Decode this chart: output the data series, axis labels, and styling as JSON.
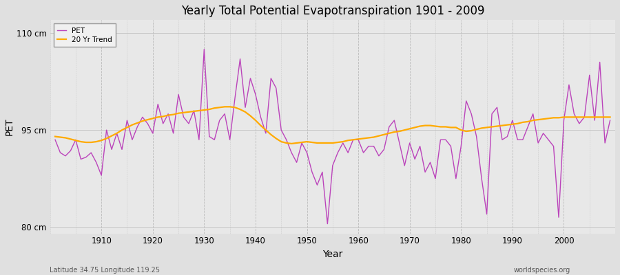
{
  "title": "Yearly Total Potential Evapotranspiration 1901 - 2009",
  "xlabel": "Year",
  "ylabel": "PET",
  "subtitle_left": "Latitude 34.75 Longitude 119.25",
  "subtitle_right": "worldspecies.org",
  "pet_color": "#bb44bb",
  "trend_color": "#ffaa00",
  "bg_color": "#e0e0e0",
  "plot_bg_color": "#e8e8e8",
  "ylim": [
    79,
    112
  ],
  "yticks": [
    80,
    95,
    110
  ],
  "ytick_labels": [
    "80 cm",
    "95 cm",
    "110 cm"
  ],
  "xlim": [
    1900,
    2010
  ],
  "xticks": [
    1910,
    1920,
    1930,
    1940,
    1950,
    1960,
    1970,
    1980,
    1990,
    2000
  ],
  "years": [
    1901,
    1902,
    1903,
    1904,
    1905,
    1906,
    1907,
    1908,
    1909,
    1910,
    1911,
    1912,
    1913,
    1914,
    1915,
    1916,
    1917,
    1918,
    1919,
    1920,
    1921,
    1922,
    1923,
    1924,
    1925,
    1926,
    1927,
    1928,
    1929,
    1930,
    1931,
    1932,
    1933,
    1934,
    1935,
    1936,
    1937,
    1938,
    1939,
    1940,
    1941,
    1942,
    1943,
    1944,
    1945,
    1946,
    1947,
    1948,
    1949,
    1950,
    1951,
    1952,
    1953,
    1954,
    1955,
    1956,
    1957,
    1958,
    1959,
    1960,
    1961,
    1962,
    1963,
    1964,
    1965,
    1966,
    1967,
    1968,
    1969,
    1970,
    1971,
    1972,
    1973,
    1974,
    1975,
    1976,
    1977,
    1978,
    1979,
    1980,
    1981,
    1982,
    1983,
    1984,
    1985,
    1986,
    1987,
    1988,
    1989,
    1990,
    1991,
    1992,
    1993,
    1994,
    1995,
    1996,
    1997,
    1998,
    1999,
    2000,
    2001,
    2002,
    2003,
    2004,
    2005,
    2006,
    2007,
    2008,
    2009
  ],
  "pet_values": [
    93.5,
    91.5,
    91.0,
    91.8,
    93.5,
    90.5,
    90.8,
    91.5,
    90.0,
    88.0,
    95.0,
    92.0,
    94.5,
    92.0,
    96.5,
    93.5,
    95.5,
    97.0,
    96.0,
    94.5,
    99.0,
    96.0,
    97.5,
    94.5,
    100.5,
    97.0,
    96.0,
    98.0,
    93.5,
    107.5,
    94.0,
    93.5,
    96.5,
    97.5,
    93.5,
    100.0,
    106.0,
    98.5,
    103.0,
    100.5,
    97.0,
    94.5,
    103.0,
    101.5,
    95.0,
    93.5,
    91.5,
    90.0,
    93.0,
    91.5,
    88.5,
    86.5,
    88.5,
    80.5,
    89.5,
    91.5,
    93.0,
    91.5,
    93.5,
    93.5,
    91.5,
    92.5,
    92.5,
    91.0,
    92.0,
    95.5,
    96.5,
    93.0,
    89.5,
    93.0,
    90.5,
    92.5,
    88.5,
    90.0,
    87.5,
    93.5,
    93.5,
    92.5,
    87.5,
    92.5,
    99.5,
    97.5,
    94.0,
    87.5,
    82.0,
    97.5,
    98.5,
    93.5,
    94.0,
    96.5,
    93.5,
    93.5,
    95.5,
    97.5,
    93.0,
    94.5,
    93.5,
    92.5,
    81.5,
    96.5,
    102.0,
    97.5,
    96.0,
    97.0,
    103.5,
    96.5,
    105.5,
    93.0,
    96.5
  ],
  "trend_values": [
    94.0,
    93.9,
    93.8,
    93.6,
    93.4,
    93.2,
    93.1,
    93.1,
    93.2,
    93.4,
    93.7,
    94.1,
    94.5,
    95.0,
    95.4,
    95.8,
    96.1,
    96.4,
    96.6,
    96.8,
    97.0,
    97.1,
    97.3,
    97.4,
    97.6,
    97.7,
    97.8,
    97.9,
    98.0,
    98.1,
    98.2,
    98.4,
    98.5,
    98.6,
    98.6,
    98.5,
    98.2,
    97.8,
    97.2,
    96.5,
    95.7,
    95.0,
    94.3,
    93.7,
    93.2,
    93.0,
    92.9,
    93.0,
    93.1,
    93.2,
    93.1,
    93.0,
    93.0,
    93.0,
    93.0,
    93.1,
    93.2,
    93.4,
    93.5,
    93.6,
    93.7,
    93.8,
    93.9,
    94.1,
    94.3,
    94.5,
    94.7,
    94.8,
    95.0,
    95.2,
    95.4,
    95.6,
    95.7,
    95.7,
    95.6,
    95.5,
    95.5,
    95.4,
    95.4,
    95.0,
    94.8,
    94.9,
    95.1,
    95.3,
    95.4,
    95.5,
    95.6,
    95.7,
    95.8,
    95.9,
    96.0,
    96.2,
    96.3,
    96.5,
    96.6,
    96.7,
    96.8,
    96.9,
    96.9,
    97.0,
    97.0,
    97.0,
    97.0,
    97.0,
    97.0,
    97.0,
    97.0,
    97.0,
    97.0
  ]
}
